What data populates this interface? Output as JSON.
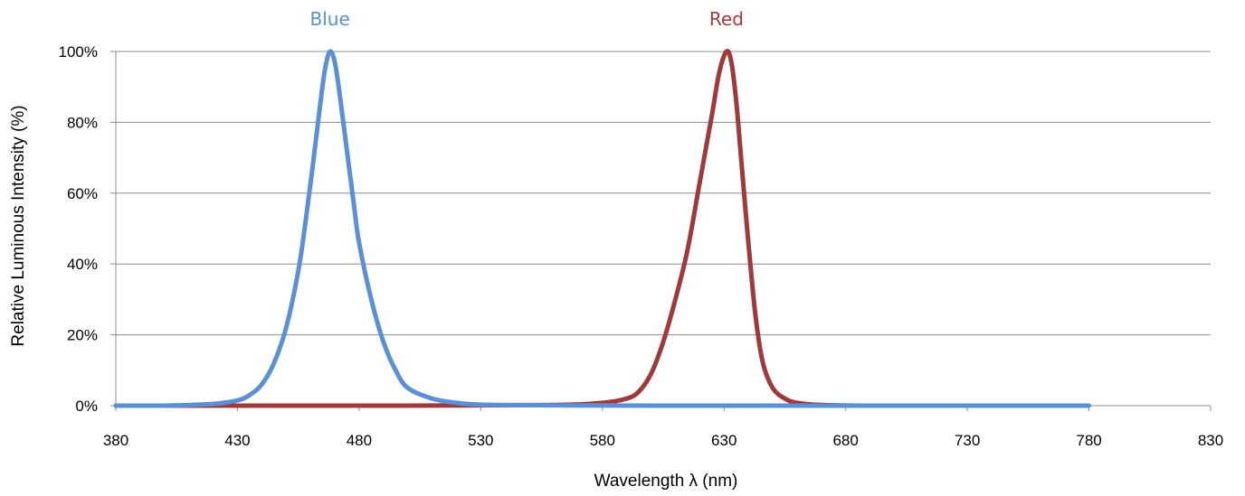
{
  "chart_data": {
    "type": "line",
    "title": "",
    "xlabel": "Wavelength λ (nm)",
    "ylabel": "Relative Luminous Intensity (%)",
    "xlim": [
      380,
      830
    ],
    "ylim": [
      0,
      100
    ],
    "x_ticks": [
      "380",
      "430",
      "480",
      "530",
      "580",
      "630",
      "680",
      "730",
      "780",
      "830"
    ],
    "y_ticks": [
      "0%",
      "20%",
      "40%",
      "60%",
      "80%",
      "100%"
    ],
    "grid": "horizontal",
    "legend": "none",
    "series": [
      {
        "name": "Blue",
        "color": "#5B8FD6",
        "x": [
          380,
          400,
          420,
          430,
          435,
          440,
          445,
          450,
          455,
          458,
          461,
          464,
          466,
          468,
          470,
          472,
          475,
          478,
          480,
          485,
          490,
          495,
          500,
          510,
          520,
          530,
          560,
          600,
          650,
          700,
          750,
          780
        ],
        "y": [
          0,
          0,
          0.5,
          1.5,
          3,
          6,
          12,
          22,
          38,
          52,
          68,
          85,
          95,
          100,
          97,
          88,
          72,
          56,
          46,
          30,
          18,
          10,
          5,
          2,
          0.8,
          0.3,
          0.1,
          0,
          0,
          0,
          0,
          0
        ]
      },
      {
        "name": "Red",
        "color": "#A03A3A",
        "x": [
          380,
          500,
          560,
          580,
          590,
          595,
          600,
          605,
          610,
          615,
          620,
          625,
          628,
          631,
          633,
          635,
          637,
          640,
          643,
          646,
          650,
          655,
          660,
          670,
          690,
          720
        ],
        "y": [
          0,
          0,
          0.2,
          0.8,
          2,
          4,
          9,
          18,
          30,
          44,
          63,
          82,
          94,
          100,
          97,
          86,
          70,
          46,
          25,
          12,
          5,
          2,
          0.8,
          0.2,
          0,
          0
        ]
      }
    ]
  }
}
